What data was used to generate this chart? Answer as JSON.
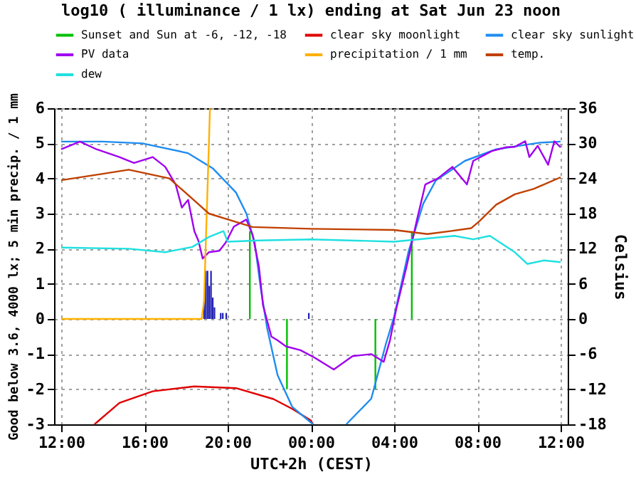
{
  "chart_data": {
    "type": "line",
    "title": "log10 ( illuminance / 1 lx) ending at Sat Jun 23 noon",
    "xlabel": "UTC+2h (CEST)",
    "ylabel": "Good below 3.6, 4000 lx; 5 min precip. / 1 mm",
    "y2label": "Celsius",
    "xlim": [
      "--06-22T12:00",
      "--06-23T12:00"
    ],
    "xticks": [
      {
        "value": "--06-22T12:00",
        "label": "12:00"
      },
      {
        "value": "--06-22T16:00",
        "label": "16:00"
      },
      {
        "value": "--06-22T20:00",
        "label": "20:00"
      },
      {
        "value": "--06-23T00:00",
        "label": "00:00"
      },
      {
        "value": "--06-23T04:00",
        "label": "04:00"
      },
      {
        "value": "--06-23T08:00",
        "label": "08:00"
      },
      {
        "value": "--06-23T12:00",
        "label": "12:00"
      }
    ],
    "ylim": [
      -3,
      6
    ],
    "yticks": [
      -3,
      -2,
      -1,
      0,
      1,
      2,
      3,
      4,
      5,
      6
    ],
    "y2lim": [
      -18,
      36
    ],
    "y2ticks": [
      -18,
      -12,
      -6,
      0,
      6,
      12,
      18,
      24,
      30,
      36
    ],
    "grid": true,
    "legend": "top",
    "series": [
      {
        "type": "bar",
        "color": "#2020b0",
        "x": [
          "--06-22T18:52",
          "--06-22T18:57",
          "--06-22T19:02",
          "--06-22T19:07",
          "--06-22T19:12",
          "--06-22T19:17",
          "--06-22T19:22",
          "--06-22T19:40",
          "--06-22T19:46",
          "--06-22T19:56",
          "--06-22T23:54"
        ],
        "values": [
          0.5,
          1.37,
          1.37,
          0.94,
          1.37,
          0.61,
          0.33,
          0.17,
          0.17,
          0.17,
          0.17
        ]
      },
      {
        "name": "Sunset and Sun at -6, -12, -18",
        "color": "#00c000",
        "x": [
          "--06-22T21:04",
          "--06-22T21:04",
          null,
          "--06-22T22:51",
          "--06-22T22:51",
          null,
          "--06-23T03:06",
          "--06-23T03:06",
          null,
          "--06-23T04:51",
          "--06-23T04:51"
        ],
        "values": [
          0,
          2.5,
          null,
          0,
          -2,
          null,
          -2,
          0,
          null,
          0,
          2.5
        ]
      },
      {
        "name": "clear sky moonlight",
        "color": "#e00000",
        "x": [
          "--06-22T13:36",
          "--06-22T14:48",
          "--06-22T16:24",
          "--06-22T18:24",
          "--06-22T20:24",
          "--06-22T22:12",
          "--06-22T23:06",
          "--06-23T00:00",
          "--06-23T00:06"
        ],
        "values": [
          -3,
          -2.39,
          -2.06,
          -1.92,
          -1.97,
          -2.28,
          -2.56,
          -2.89,
          -3
        ]
      },
      {
        "name": "clear sky sunlight",
        "color": "#1e8cf0",
        "x": [
          "--06-22T12:00",
          "--06-22T14:00",
          "--06-22T15:54",
          "--06-22T18:06",
          "--06-22T19:18",
          "--06-22T20:24",
          "--06-22T20:54",
          "--06-22T21:18",
          "--06-22T21:36",
          "--06-22T21:54",
          "--06-22T22:24",
          "--06-22T23:06",
          "--06-23T00:06",
          null,
          "--06-23T01:42",
          "--06-23T02:54",
          "--06-23T03:36",
          "--06-23T04:00",
          "--06-23T04:42",
          "--06-23T05:24",
          "--06-23T06:00",
          "--06-23T07:24",
          "--06-23T08:54",
          "--06-23T11:00",
          "--06-23T12:00"
        ],
        "values": [
          5.05,
          5.05,
          5.0,
          4.72,
          4.28,
          3.6,
          3.0,
          2.17,
          0.83,
          -0.27,
          -1.6,
          -2.5,
          -3,
          null,
          -3,
          -2.27,
          -0.72,
          0.07,
          1.94,
          3.28,
          3.94,
          4.5,
          4.83,
          5.02,
          5.05
        ]
      },
      {
        "name": "PV data",
        "color": "#a000f0",
        "x": [
          "--06-22T12:00",
          "--06-22T12:54",
          "--06-22T13:42",
          "--06-22T14:48",
          "--06-22T15:30",
          "--06-22T16:24",
          "--06-22T17:00",
          "--06-22T17:30",
          "--06-22T17:48",
          "--06-22T18:06",
          "--06-22T18:24",
          "--06-22T18:36",
          "--06-22T18:48",
          "--06-22T19:06",
          "--06-22T19:36",
          "--06-22T19:54",
          "--06-22T20:18",
          "--06-22T20:54",
          "--06-22T21:12",
          "--06-22T21:30",
          "--06-22T21:42",
          "--06-22T22:06",
          "--06-22T22:24",
          "--06-22T22:48",
          "--06-22T23:30",
          "--06-23T00:12",
          "--06-23T01:06",
          "--06-23T02:00",
          "--06-23T02:54",
          "--06-23T03:30",
          "--06-23T03:48",
          "--06-23T04:06",
          "--06-23T04:36",
          "--06-23T05:06",
          "--06-23T05:30",
          "--06-23T06:06",
          "--06-23T06:48",
          "--06-23T07:30",
          "--06-23T07:48",
          "--06-23T08:42",
          "--06-23T09:24",
          "--06-23T09:48",
          "--06-23T10:18",
          "--06-23T10:30",
          "--06-23T10:54",
          "--06-23T11:24",
          "--06-23T11:42",
          "--06-23T12:00"
        ],
        "values": [
          4.83,
          5.05,
          4.83,
          4.61,
          4.44,
          4.61,
          4.33,
          3.83,
          3.17,
          3.39,
          2.5,
          2.22,
          1.72,
          1.9,
          1.94,
          2.17,
          2.63,
          2.83,
          2.39,
          1.5,
          0.39,
          -0.5,
          -0.61,
          -0.78,
          -0.89,
          -1.11,
          -1.44,
          -1.06,
          -1.0,
          -1.22,
          -0.61,
          0.28,
          1.5,
          2.83,
          3.83,
          4.0,
          4.33,
          3.83,
          4.5,
          4.78,
          4.89,
          4.9,
          5.06,
          4.61,
          4.93,
          4.39,
          5.06,
          4.89
        ]
      },
      {
        "name": "precipitation / 1 mm",
        "color": "#ffb000",
        "x": [
          "--06-22T12:00",
          "--06-22T18:45",
          "--06-22T18:52",
          "--06-22T18:57",
          "--06-22T19:02",
          "--06-22T19:06",
          "--06-22T19:09"
        ],
        "values": [
          0,
          0,
          0.5,
          2.17,
          3.72,
          5.0,
          6
        ]
      },
      {
        "name": "temp.",
        "color": "#c04000",
        "axis": "y2",
        "x": [
          "--06-22T12:00",
          "--06-22T14:00",
          "--06-22T15:15",
          "--06-22T17:12",
          "--06-22T18:36",
          "--06-22T19:06",
          "--06-22T20:00",
          "--06-22T21:12",
          "--06-23T00:00",
          "--06-23T04:00",
          "--06-23T05:36",
          "--06-23T06:42",
          "--06-23T07:42",
          "--06-23T08:06",
          "--06-23T08:54",
          "--06-23T09:48",
          "--06-23T10:42",
          "--06-23T12:00"
        ],
        "values": [
          23.7,
          24.8,
          25.5,
          24,
          19.6,
          18,
          17,
          15.7,
          15.4,
          15.2,
          14.5,
          15,
          15.5,
          16.7,
          19.5,
          21.3,
          22.2,
          24.2
        ]
      },
      {
        "name": "dew",
        "color": "#20e0e0",
        "axis": "y2",
        "x": [
          "--06-22T12:00",
          "--06-22T15:15",
          "--06-22T17:00",
          "--06-22T18:18",
          "--06-22T19:06",
          "--06-22T19:48",
          "--06-22T20:00",
          "--06-22T21:30",
          "--06-23T00:00",
          "--06-23T04:00",
          "--06-23T06:54",
          "--06-23T07:48",
          "--06-23T08:36",
          "--06-23T09:48",
          "--06-23T10:24",
          "--06-23T11:12",
          "--06-23T12:00"
        ],
        "values": [
          12.2,
          12,
          11.4,
          12.3,
          14,
          15,
          13.2,
          13.4,
          13.6,
          13.2,
          14.2,
          13.6,
          14.2,
          11.4,
          9.4,
          10,
          9.7
        ]
      }
    ]
  }
}
